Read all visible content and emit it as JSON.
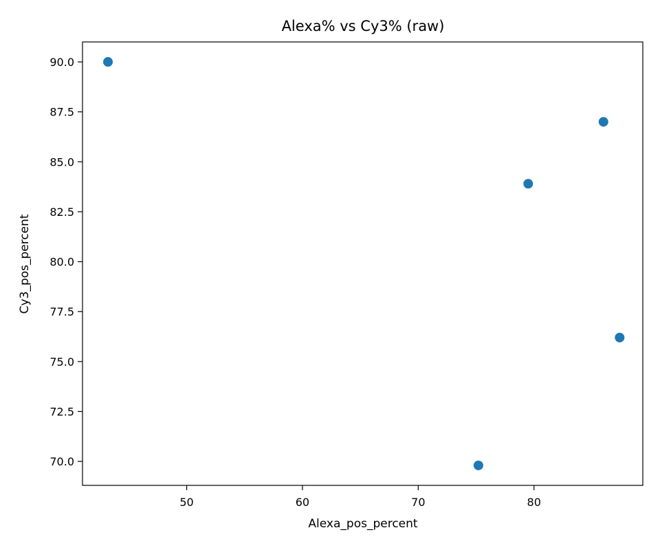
{
  "chart_data": {
    "type": "scatter",
    "title": "Alexa% vs Cy3% (raw)",
    "xlabel": "Alexa_pos_percent",
    "ylabel": "Cy3_pos_percent",
    "xlim": [
      41.0,
      89.4
    ],
    "ylim": [
      68.8,
      91.0
    ],
    "xticks": [
      50,
      60,
      70,
      80
    ],
    "xtick_labels": [
      "50",
      "60",
      "70",
      "80"
    ],
    "yticks": [
      70.0,
      72.5,
      75.0,
      77.5,
      80.0,
      82.5,
      85.0,
      87.5,
      90.0
    ],
    "ytick_labels": [
      "70.0",
      "72.5",
      "75.0",
      "77.5",
      "80.0",
      "82.5",
      "85.0",
      "87.5",
      "90.0"
    ],
    "grid": false,
    "marker_color": "#1f77b4",
    "points": [
      {
        "x": 43.2,
        "y": 90.0
      },
      {
        "x": 86.0,
        "y": 87.0
      },
      {
        "x": 79.5,
        "y": 83.9
      },
      {
        "x": 87.4,
        "y": 76.2
      },
      {
        "x": 75.2,
        "y": 69.8
      }
    ]
  }
}
